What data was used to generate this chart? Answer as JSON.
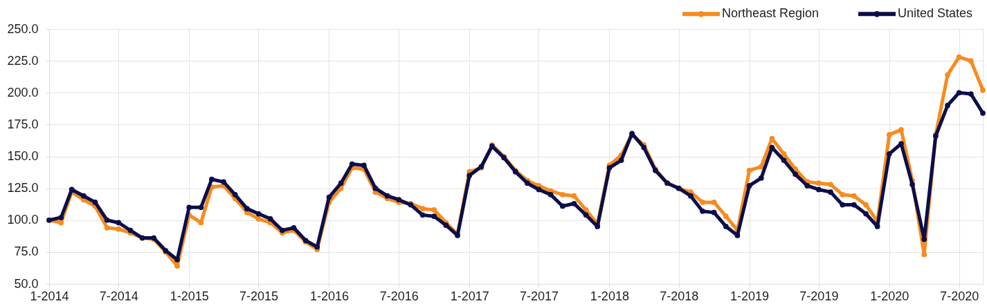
{
  "chart_data": {
    "type": "line",
    "x": [
      "2014-01",
      "2014-02",
      "2014-03",
      "2014-04",
      "2014-05",
      "2014-06",
      "2014-07",
      "2014-08",
      "2014-09",
      "2014-10",
      "2014-11",
      "2014-12",
      "2015-01",
      "2015-02",
      "2015-03",
      "2015-04",
      "2015-05",
      "2015-06",
      "2015-07",
      "2015-08",
      "2015-09",
      "2015-10",
      "2015-11",
      "2015-12",
      "2016-01",
      "2016-02",
      "2016-03",
      "2016-04",
      "2016-05",
      "2016-06",
      "2016-07",
      "2016-08",
      "2016-09",
      "2016-10",
      "2016-11",
      "2016-12",
      "2017-01",
      "2017-02",
      "2017-03",
      "2017-04",
      "2017-05",
      "2017-06",
      "2017-07",
      "2017-08",
      "2017-09",
      "2017-10",
      "2017-11",
      "2017-12",
      "2018-01",
      "2018-02",
      "2018-03",
      "2018-04",
      "2018-05",
      "2018-06",
      "2018-07",
      "2018-08",
      "2018-09",
      "2018-10",
      "2018-11",
      "2018-12",
      "2019-01",
      "2019-02",
      "2019-03",
      "2019-04",
      "2019-05",
      "2019-06",
      "2019-07",
      "2019-08",
      "2019-09",
      "2019-10",
      "2019-11",
      "2019-12",
      "2020-01",
      "2020-02",
      "2020-03",
      "2020-04",
      "2020-05",
      "2020-06",
      "2020-07",
      "2020-08",
      "2020-09"
    ],
    "series": [
      {
        "name": "Northeast Region",
        "color": "#f68b1f",
        "values": [
          100,
          98,
          122,
          116,
          111,
          94,
          93,
          90,
          86,
          85,
          75,
          64,
          104,
          98,
          126,
          127,
          117,
          106,
          101,
          98,
          90,
          92,
          83,
          77,
          114,
          125,
          141,
          140,
          122,
          117,
          114,
          113,
          109,
          108,
          98,
          89,
          138,
          141,
          159,
          150,
          139,
          131,
          127,
          123,
          120,
          119,
          108,
          97,
          143,
          151,
          167,
          159,
          140,
          129,
          125,
          122,
          114,
          114,
          103,
          92,
          139,
          142,
          164,
          152,
          140,
          130,
          129,
          128,
          120,
          119,
          112,
          99,
          167,
          171,
          131,
          73,
          167,
          214,
          228,
          225,
          202
        ]
      },
      {
        "name": "United States",
        "color": "#0b0e4a",
        "values": [
          100,
          102,
          124,
          119,
          114,
          100,
          98,
          92,
          86,
          86,
          76,
          69,
          110,
          110,
          132,
          130,
          120,
          109,
          105,
          101,
          92,
          94,
          84,
          79,
          118,
          129,
          144,
          143,
          125,
          119,
          116,
          112,
          104,
          103,
          96,
          88,
          135,
          142,
          158,
          149,
          138,
          129,
          124,
          120,
          111,
          113,
          104,
          95,
          141,
          147,
          168,
          157,
          139,
          129,
          125,
          119,
          107,
          106,
          95,
          88,
          127,
          133,
          157,
          147,
          136,
          127,
          124,
          122,
          112,
          112,
          105,
          95,
          152,
          160,
          128,
          85,
          166,
          190,
          200,
          199,
          184
        ]
      }
    ],
    "xlim": [
      "2014-01",
      "2020-09"
    ],
    "xticks": [
      {
        "value": "2014-01",
        "label": "1-2014"
      },
      {
        "value": "2014-07",
        "label": "7-2014"
      },
      {
        "value": "2015-01",
        "label": "1-2015"
      },
      {
        "value": "2015-07",
        "label": "7-2015"
      },
      {
        "value": "2016-01",
        "label": "1-2016"
      },
      {
        "value": "2016-07",
        "label": "7-2016"
      },
      {
        "value": "2017-01",
        "label": "1-2017"
      },
      {
        "value": "2017-07",
        "label": "7-2017"
      },
      {
        "value": "2018-01",
        "label": "1-2018"
      },
      {
        "value": "2018-07",
        "label": "7-2018"
      },
      {
        "value": "2019-01",
        "label": "1-2019"
      },
      {
        "value": "2019-07",
        "label": "7-2019"
      },
      {
        "value": "2020-01",
        "label": "1-2020"
      },
      {
        "value": "2020-07",
        "label": "7-2020"
      }
    ],
    "ylim": [
      50,
      250
    ],
    "yticks": [
      {
        "value": 50,
        "label": "50.0"
      },
      {
        "value": 75,
        "label": "75.0"
      },
      {
        "value": 100,
        "label": "100.0"
      },
      {
        "value": 125,
        "label": "125.0"
      },
      {
        "value": 150,
        "label": "150.0"
      },
      {
        "value": 175,
        "label": "175.0"
      },
      {
        "value": 200,
        "label": "200.0"
      },
      {
        "value": 225,
        "label": "225.0"
      },
      {
        "value": 250,
        "label": "250.0"
      }
    ],
    "grid": true,
    "legend": "top right",
    "marker": "circle",
    "line_style": "solid"
  }
}
